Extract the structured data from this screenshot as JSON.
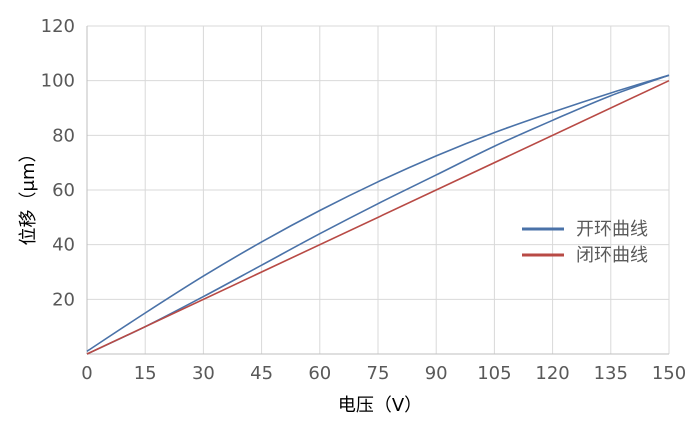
{
  "chart_data": {
    "type": "line",
    "xlabel": "电压（V）",
    "ylabel": "位移（μm）",
    "xlim": [
      0,
      150
    ],
    "ylim": [
      0,
      120
    ],
    "x_ticks": [
      "0",
      "15",
      "30",
      "45",
      "60",
      "75",
      "90",
      "105",
      "120",
      "135",
      "150"
    ],
    "y_ticks": [
      "20",
      "40",
      "60",
      "80",
      "100",
      "120"
    ],
    "grid": true,
    "legend_position": "right",
    "series": [
      {
        "name": "开环曲线",
        "color": "#4A72A8",
        "loops": [
          {
            "x": [
              0,
              15,
              30,
              45,
              60,
              75,
              90,
              105,
              120,
              135,
              150
            ],
            "y": [
              1,
              15,
              28.5,
              41,
              52.5,
              63,
              72.5,
              81,
              88.5,
              95.5,
              102
            ]
          },
          {
            "x": [
              150,
              135,
              120,
              105,
              90,
              75,
              60,
              45,
              30,
              15,
              0
            ],
            "y": [
              102,
              94.5,
              85.5,
              76,
              65.5,
              55,
              44,
              32.5,
              21,
              10,
              0
            ]
          }
        ]
      },
      {
        "name": "闭环曲线",
        "color": "#B84A45",
        "loops": [
          {
            "x": [
              0,
              150
            ],
            "y": [
              0,
              100
            ]
          }
        ]
      }
    ]
  }
}
